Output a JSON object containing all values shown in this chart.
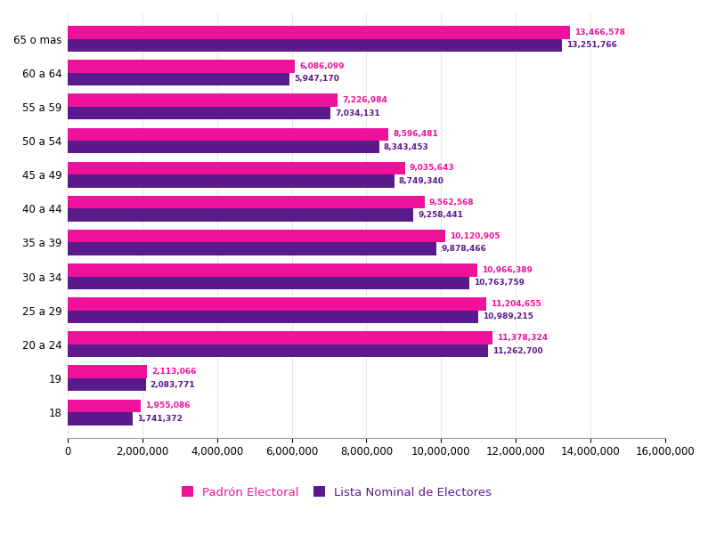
{
  "categories": [
    "18",
    "19",
    "20 a 24",
    "25 a 29",
    "30 a 34",
    "35 a 39",
    "40 a 44",
    "45 a 49",
    "50 a 54",
    "55 a 59",
    "60 a 64",
    "65 o mas"
  ],
  "padron": [
    1955086,
    2113066,
    11378324,
    11204655,
    10966389,
    10120905,
    9562568,
    9035643,
    8596481,
    7226984,
    6086099,
    13466578
  ],
  "lista_nominal": [
    1741372,
    2083771,
    11262700,
    10989215,
    10763759,
    9878466,
    9258441,
    8749340,
    8343453,
    7034131,
    5947170,
    13251766
  ],
  "padron_color": "#EE1199",
  "lista_color": "#5B1A8B",
  "padron_label": "Padrón Electoral",
  "lista_label": "Lista Nominal de Electores",
  "xlim": [
    0,
    16000000
  ],
  "xticks": [
    0,
    2000000,
    4000000,
    6000000,
    8000000,
    10000000,
    12000000,
    14000000,
    16000000
  ],
  "background_color": "#ffffff",
  "tick_fontsize": 8.5,
  "legend_fontsize": 9.5,
  "bar_height": 0.38,
  "annotation_fontsize": 6.5
}
